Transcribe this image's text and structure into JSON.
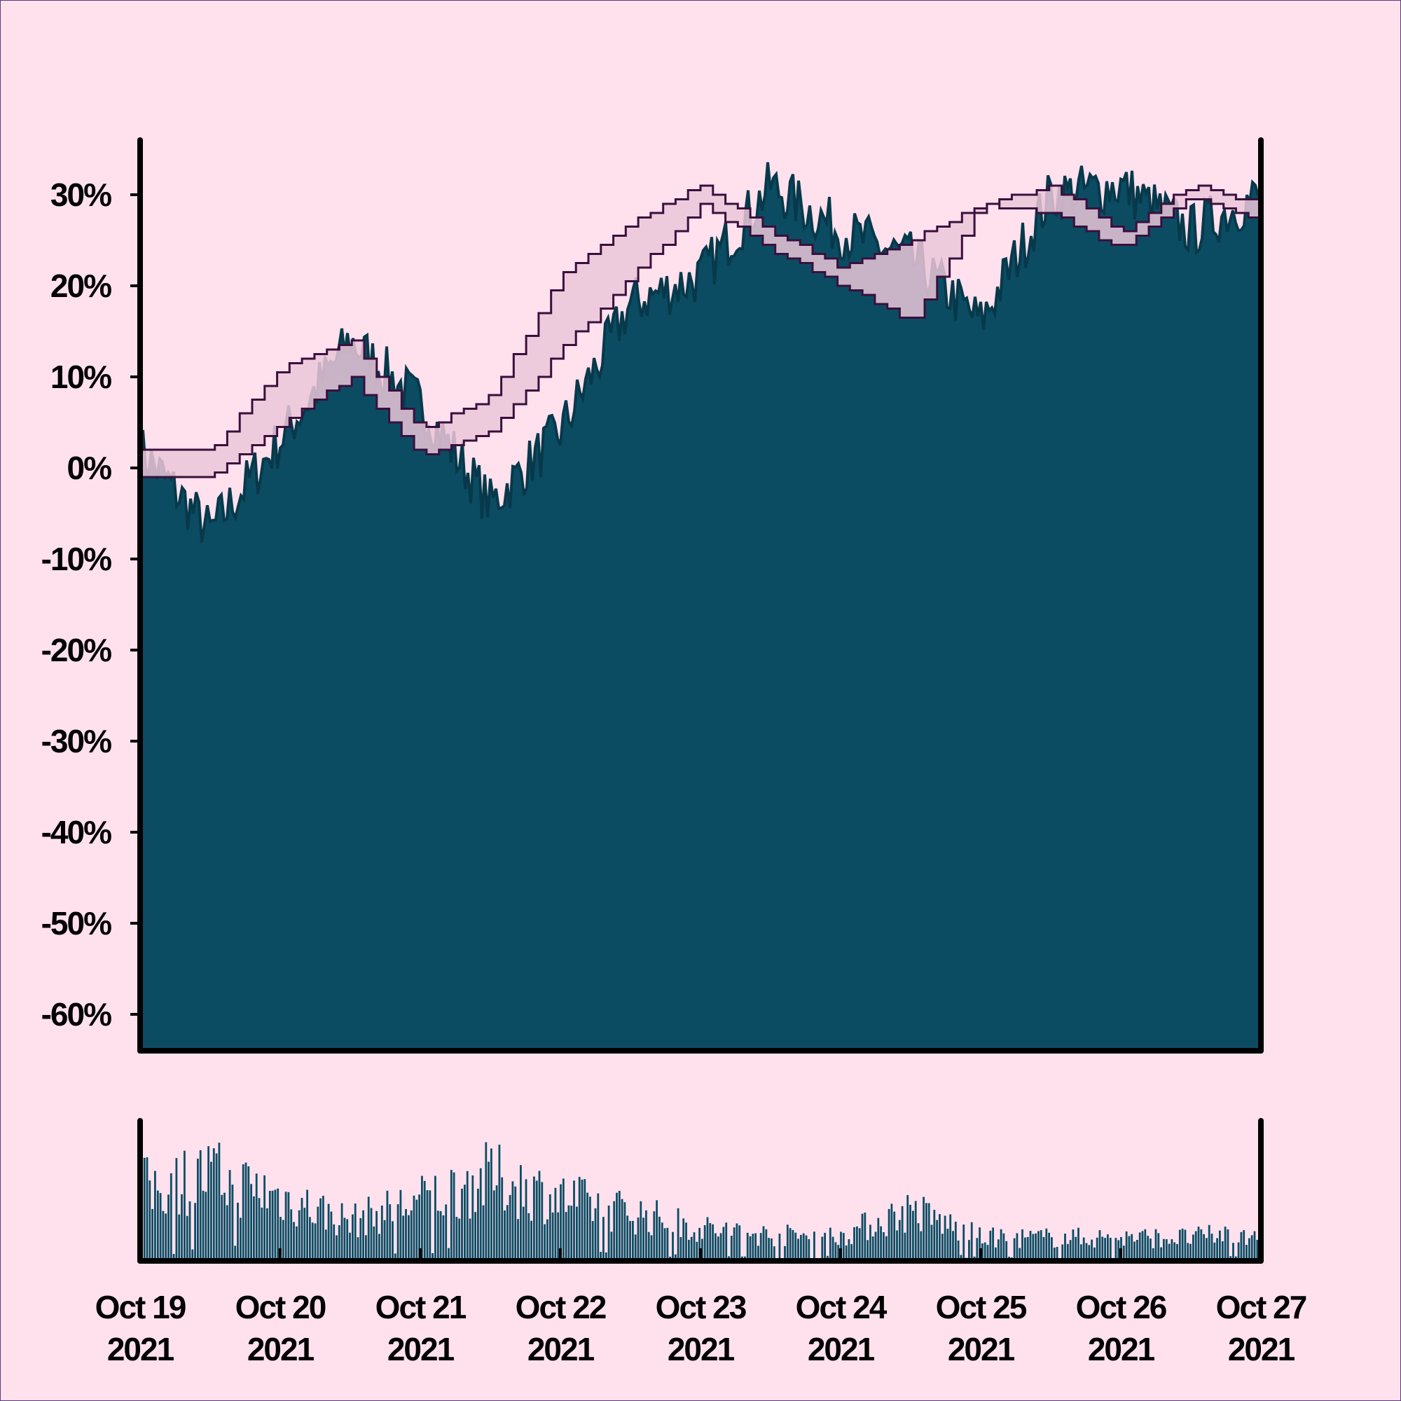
{
  "colors": {
    "background": "#ffe1ee",
    "area_fill": "#0b4c63",
    "area_edge": "#07394a",
    "band_line": "#3a0f3d",
    "band_fill": "#ebc7d8",
    "axis": "#000000"
  },
  "chart_data": [
    {
      "type": "area",
      "title": "",
      "xlabel": "",
      "ylabel": "",
      "ylim": [
        -64,
        36
      ],
      "xlim": [
        "2021-10-19",
        "2021-10-27"
      ],
      "yticks": [
        30,
        20,
        10,
        0,
        -10,
        -20,
        -30,
        -40,
        -50,
        -60
      ],
      "ytick_labels": [
        "30%",
        "20%",
        "10%",
        "0%",
        "-10%",
        "-20%",
        "-30%",
        "-40%",
        "-50%",
        "-60%"
      ],
      "grid": false,
      "series": [
        {
          "role": "price_area",
          "x": [
            "2021-10-19",
            "2021-10-19 12:00",
            "2021-10-20",
            "2021-10-20 12:00",
            "2021-10-21",
            "2021-10-21 12:00",
            "2021-10-22",
            "2021-10-22 12:00",
            "2021-10-23",
            "2021-10-23 12:00",
            "2021-10-24",
            "2021-10-24 12:00",
            "2021-10-25",
            "2021-10-25 12:00",
            "2021-10-26",
            "2021-10-26 12:00",
            "2021-10-27"
          ],
          "values": [
            2,
            -7,
            3,
            14,
            7,
            -4,
            4,
            18,
            21,
            31,
            26,
            23,
            16,
            30,
            31,
            26,
            30
          ]
        },
        {
          "role": "band_upper",
          "x": [
            "2021-10-19",
            "2021-10-19 12:00",
            "2021-10-20",
            "2021-10-20 12:00",
            "2021-10-21",
            "2021-10-21 12:00",
            "2021-10-22",
            "2021-10-22 12:00",
            "2021-10-23",
            "2021-10-23 12:00",
            "2021-10-24",
            "2021-10-24 12:00",
            "2021-10-25",
            "2021-10-25 12:00",
            "2021-10-26",
            "2021-10-26 12:00",
            "2021-10-27"
          ],
          "values": [
            2,
            2,
            11,
            14,
            4,
            8,
            21,
            27,
            31,
            26,
            22,
            25,
            29,
            31,
            26,
            31,
            29
          ]
        },
        {
          "role": "band_lower",
          "x": [
            "2021-10-19",
            "2021-10-19 12:00",
            "2021-10-20",
            "2021-10-20 12:00",
            "2021-10-21",
            "2021-10-21 12:00",
            "2021-10-22",
            "2021-10-22 12:00",
            "2021-10-23",
            "2021-10-23 12:00",
            "2021-10-24",
            "2021-10-24 12:00",
            "2021-10-25",
            "2021-10-25 12:00",
            "2021-10-26",
            "2021-10-26 12:00",
            "2021-10-27"
          ],
          "values": [
            -1,
            -1,
            5,
            10,
            1,
            4,
            13,
            21,
            29,
            24,
            20,
            16,
            29,
            28,
            24,
            30,
            27
          ]
        }
      ]
    },
    {
      "type": "bar",
      "title": "",
      "xlabel": "",
      "ylabel": "",
      "description": "volume bars, no y-axis labels",
      "x": [
        "2021-10-19",
        "2021-10-19 12:00",
        "2021-10-20",
        "2021-10-20 12:00",
        "2021-10-21",
        "2021-10-21 12:00",
        "2021-10-22",
        "2021-10-22 12:00",
        "2021-10-23",
        "2021-10-23 12:00",
        "2021-10-24",
        "2021-10-24 12:00",
        "2021-10-25",
        "2021-10-25 12:00",
        "2021-10-26",
        "2021-10-26 12:00",
        "2021-10-27"
      ],
      "values": [
        0.62,
        0.74,
        0.55,
        0.34,
        0.52,
        0.72,
        0.54,
        0.42,
        0.28,
        0.22,
        0.22,
        0.44,
        0.2,
        0.2,
        0.2,
        0.2,
        0.26
      ],
      "xtick_labels": [
        [
          "Oct 19",
          "2021"
        ],
        [
          "Oct 20",
          "2021"
        ],
        [
          "Oct 21",
          "2021"
        ],
        [
          "Oct 22",
          "2021"
        ],
        [
          "Oct 23",
          "2021"
        ],
        [
          "Oct 24",
          "2021"
        ],
        [
          "Oct 25",
          "2021"
        ],
        [
          "Oct 26",
          "2021"
        ],
        [
          "Oct 27",
          "2021"
        ]
      ]
    }
  ]
}
